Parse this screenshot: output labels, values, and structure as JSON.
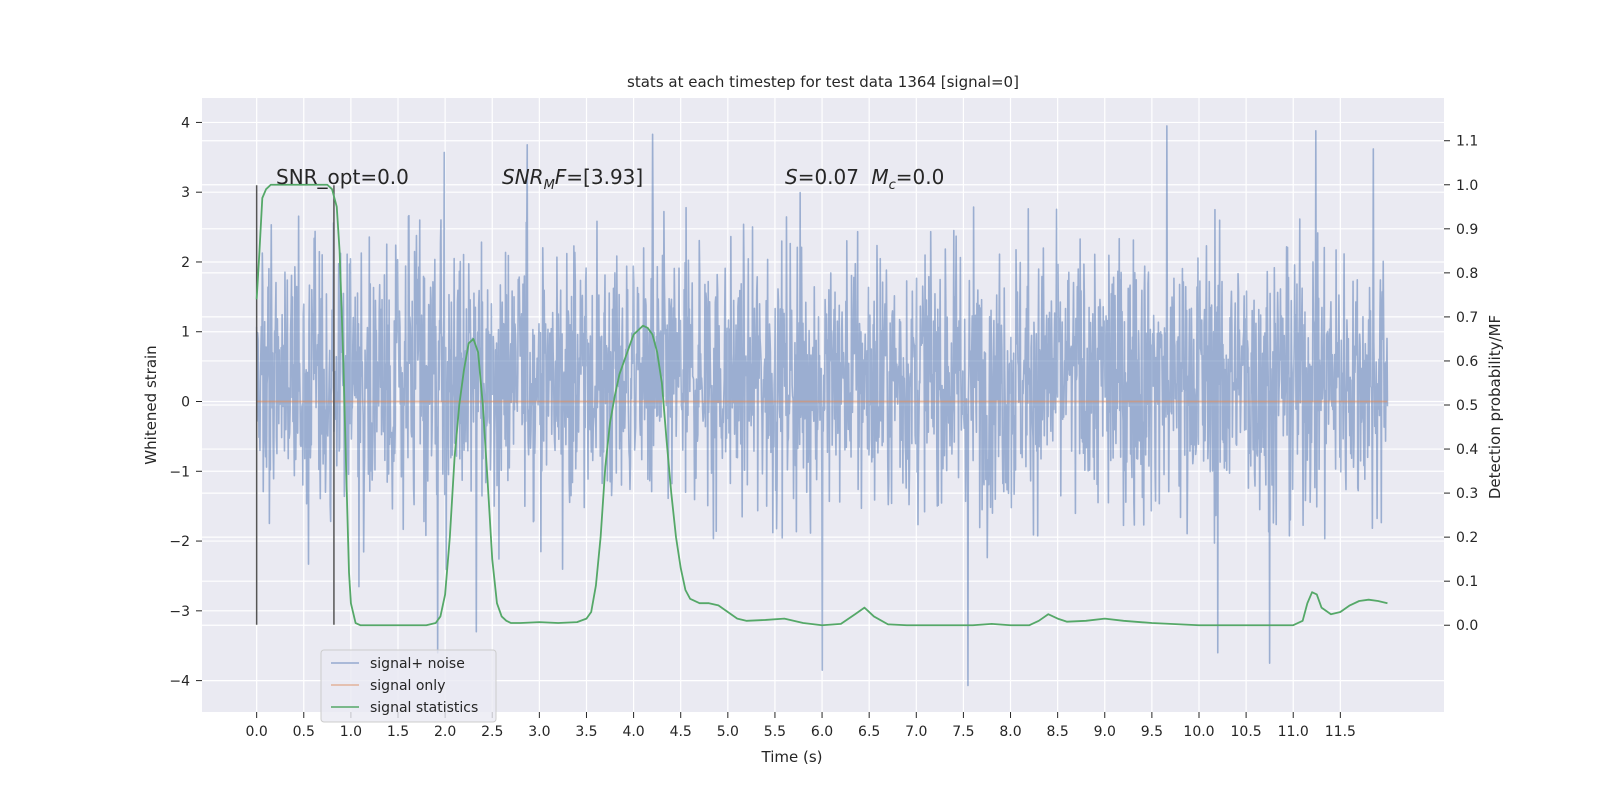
{
  "chart_data": {
    "type": "line",
    "title": "stats at each timestep for test data 1364 [signal=0]",
    "xlabel": "Time (s)",
    "ylabel": "Whitened strain",
    "y2label": "Detection probability/MF",
    "xlim": [
      -0.58,
      12.6
    ],
    "ylim": [
      -4.45,
      4.35
    ],
    "y2lim": [
      -0.197,
      1.197
    ],
    "x_ticks": [
      0.0,
      0.5,
      1.0,
      1.5,
      2.0,
      2.5,
      3.0,
      3.5,
      4.0,
      4.5,
      5.0,
      5.5,
      6.0,
      6.5,
      7.0,
      7.5,
      8.0,
      8.5,
      9.0,
      9.5,
      10.0,
      10.5,
      11.0,
      11.5
    ],
    "x_tick_labels": [
      "0.0",
      "0.5",
      "1.0",
      "1.5",
      "2.0",
      "2.5",
      "3.0",
      "3.5",
      "4.0",
      "4.5",
      "5.0",
      "5.5",
      "6.0",
      "6.5",
      "7.0",
      "7.5",
      "8.0",
      "8.5",
      "9.0",
      "9.5",
      "10.0",
      "10.5",
      "11.0",
      "11.5"
    ],
    "y_ticks": [
      -4,
      -3,
      -2,
      -1,
      0,
      1,
      2,
      3,
      4
    ],
    "y_tick_labels": [
      "−4",
      "−3",
      "−2",
      "−1",
      "0",
      "1",
      "2",
      "3",
      "4"
    ],
    "y2_ticks": [
      0.0,
      0.1,
      0.2,
      0.3,
      0.4,
      0.5,
      0.6,
      0.7,
      0.8,
      0.9,
      1.0,
      1.1
    ],
    "y2_tick_labels": [
      "0.0",
      "0.1",
      "0.2",
      "0.3",
      "0.4",
      "0.5",
      "0.6",
      "0.7",
      "0.8",
      "0.9",
      "1.0",
      "1.1"
    ],
    "grid": true,
    "legend_position": "lower-left",
    "legend": [
      "signal+ noise",
      "signal only",
      "signal statistics"
    ],
    "series": [
      {
        "name": "signal+ noise",
        "axis": "left",
        "color": "#4c72b0",
        "x_range": [
          0.0,
          12.0
        ],
        "description": "whitened noise",
        "envelope_typical": [
          -1.6,
          2.6
        ],
        "notable_peaks": [
          {
            "x": 1.99,
            "y": 3.57
          },
          {
            "x": 2.87,
            "y": 3.68
          },
          {
            "x": 4.2,
            "y": 3.83
          },
          {
            "x": 9.66,
            "y": 3.95
          },
          {
            "x": 11.24,
            "y": 3.88
          },
          {
            "x": 11.85,
            "y": 3.62
          }
        ],
        "notable_troughs": [
          {
            "x": 1.92,
            "y": -3.6
          },
          {
            "x": 6.0,
            "y": -3.85
          },
          {
            "x": 7.55,
            "y": -4.07
          },
          {
            "x": 10.2,
            "y": -3.6
          },
          {
            "x": 10.75,
            "y": -3.75
          },
          {
            "x": 2.33,
            "y": -3.3
          }
        ]
      },
      {
        "name": "signal only",
        "axis": "left",
        "color": "#dd8452",
        "x": [
          0.0,
          12.0
        ],
        "y": [
          0.0,
          0.0
        ]
      },
      {
        "name": "signal statistics",
        "axis": "right",
        "color": "#55a868",
        "x": [
          0.0,
          0.03,
          0.06,
          0.1,
          0.15,
          0.2,
          0.3,
          0.4,
          0.5,
          0.6,
          0.7,
          0.75,
          0.8,
          0.85,
          0.88,
          0.92,
          0.95,
          0.98,
          1.0,
          1.05,
          1.1,
          1.3,
          1.6,
          1.8,
          1.9,
          1.95,
          2.0,
          2.05,
          2.1,
          2.15,
          2.2,
          2.25,
          2.3,
          2.35,
          2.4,
          2.45,
          2.5,
          2.55,
          2.6,
          2.65,
          2.7,
          2.8,
          3.0,
          3.2,
          3.4,
          3.5,
          3.55,
          3.6,
          3.65,
          3.7,
          3.75,
          3.8,
          3.85,
          3.9,
          3.95,
          4.0,
          4.05,
          4.1,
          4.15,
          4.2,
          4.25,
          4.3,
          4.35,
          4.4,
          4.45,
          4.5,
          4.55,
          4.6,
          4.7,
          4.8,
          4.9,
          5.0,
          5.1,
          5.2,
          5.4,
          5.6,
          5.8,
          6.0,
          6.2,
          6.35,
          6.45,
          6.55,
          6.7,
          6.9,
          7.2,
          7.6,
          7.8,
          8.0,
          8.2,
          8.3,
          8.4,
          8.5,
          8.6,
          8.8,
          9.0,
          9.2,
          9.5,
          10.0,
          10.5,
          11.0,
          11.1,
          11.15,
          11.2,
          11.25,
          11.3,
          11.4,
          11.5,
          11.6,
          11.7,
          11.8,
          11.9,
          12.0
        ],
        "y": [
          0.74,
          0.85,
          0.97,
          0.99,
          1.0,
          1.0,
          1.0,
          1.0,
          1.0,
          1.0,
          1.0,
          1.0,
          0.99,
          0.95,
          0.85,
          0.6,
          0.35,
          0.12,
          0.05,
          0.005,
          0.0,
          0.0,
          0.0,
          0.0,
          0.005,
          0.02,
          0.07,
          0.2,
          0.38,
          0.5,
          0.58,
          0.64,
          0.65,
          0.62,
          0.5,
          0.33,
          0.15,
          0.05,
          0.02,
          0.01,
          0.005,
          0.005,
          0.007,
          0.005,
          0.007,
          0.015,
          0.03,
          0.09,
          0.2,
          0.36,
          0.46,
          0.52,
          0.57,
          0.6,
          0.63,
          0.66,
          0.67,
          0.68,
          0.675,
          0.66,
          0.62,
          0.55,
          0.42,
          0.3,
          0.2,
          0.13,
          0.08,
          0.06,
          0.05,
          0.05,
          0.045,
          0.03,
          0.015,
          0.01,
          0.012,
          0.015,
          0.005,
          0.0,
          0.003,
          0.025,
          0.04,
          0.02,
          0.002,
          0.0,
          0.0,
          0.0,
          0.003,
          0.0,
          0.0,
          0.01,
          0.025,
          0.015,
          0.008,
          0.01,
          0.015,
          0.01,
          0.005,
          0.0,
          0.0,
          0.0,
          0.01,
          0.05,
          0.075,
          0.07,
          0.04,
          0.025,
          0.03,
          0.045,
          0.055,
          0.058,
          0.055,
          0.05
        ]
      }
    ],
    "markers": {
      "vertical_lines_x": [
        0.0,
        0.82
      ],
      "vertical_lines_y_range": [
        -3.2,
        3.1
      ],
      "color": "#555555"
    },
    "annotations": [
      {
        "text": "SNR_opt=0.0",
        "x": 0.2,
        "y": 3.1
      },
      {
        "text": "SNR_MF=[3.93]",
        "x": 2.6,
        "y": 3.1
      },
      {
        "text": "S=0.07   M_c=0.0",
        "x": 5.6,
        "y": 3.1
      }
    ],
    "colors": {
      "background": "#eaeaf2",
      "grid": "#ffffff",
      "noise": "#4c72b0",
      "signal": "#dd8452",
      "statistics": "#55a868"
    }
  }
}
